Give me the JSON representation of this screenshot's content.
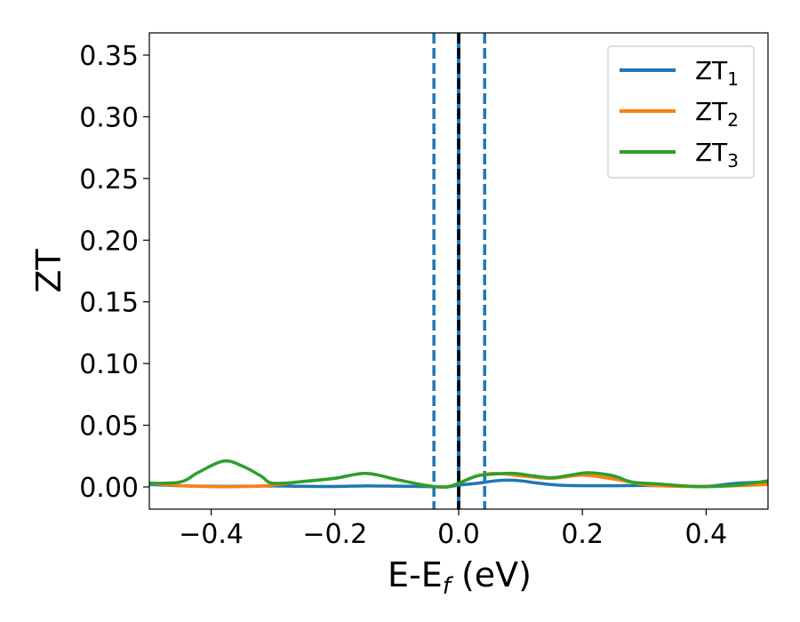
{
  "chart_data": {
    "type": "line",
    "title": "",
    "xlabel": {
      "main": "E-E",
      "sub": "f",
      "unit": " (eV)"
    },
    "ylabel": "ZT",
    "xlim": [
      -0.5,
      0.5
    ],
    "ylim": [
      -0.018,
      0.368
    ],
    "xticks": [
      -0.4,
      -0.2,
      0.0,
      0.2,
      0.4
    ],
    "xtick_labels": [
      "−0.4",
      "−0.2",
      "0.0",
      "0.2",
      "0.4"
    ],
    "yticks": [
      0.0,
      0.05,
      0.1,
      0.15,
      0.2,
      0.25,
      0.3,
      0.35
    ],
    "ytick_labels": [
      "0.00",
      "0.05",
      "0.10",
      "0.15",
      "0.20",
      "0.25",
      "0.30",
      "0.35"
    ],
    "grid": false,
    "legend_position": "top-right",
    "vlines": [
      {
        "x": -0.04,
        "style": "dashed",
        "color": "#1f77b4"
      },
      {
        "x": 0.0,
        "style": "solid",
        "color": "#1f77b4"
      },
      {
        "x": 0.0,
        "style": "dashed",
        "color": "#000000"
      },
      {
        "x": 0.042,
        "style": "dashed",
        "color": "#1f77b4"
      }
    ],
    "series": [
      {
        "name": "ZT",
        "sub": "1",
        "color": "#1f77b4",
        "x": [
          -0.5,
          -0.45,
          -0.4,
          -0.35,
          -0.3,
          -0.25,
          -0.2,
          -0.15,
          -0.1,
          -0.05,
          -0.02,
          0.0,
          0.03,
          0.06,
          0.08,
          0.1,
          0.13,
          0.16,
          0.2,
          0.25,
          0.3,
          0.35,
          0.4,
          0.45,
          0.5
        ],
        "y": [
          0.002,
          0.001,
          0.0005,
          0.0005,
          0.0008,
          0.0005,
          0.0004,
          0.0008,
          0.0006,
          0.0003,
          0.0,
          0.0015,
          0.003,
          0.005,
          0.0055,
          0.005,
          0.003,
          0.0015,
          0.001,
          0.001,
          0.0012,
          0.0008,
          0.0005,
          0.003,
          0.004
        ]
      },
      {
        "name": "ZT",
        "sub": "2",
        "color": "#ff7f0e",
        "x": [
          -0.5,
          -0.45,
          -0.4,
          -0.37,
          -0.33,
          -0.3,
          -0.25,
          -0.2,
          -0.15,
          -0.1,
          -0.05,
          -0.02,
          0.0,
          0.03,
          0.06,
          0.1,
          0.15,
          0.2,
          0.25,
          0.3,
          0.35,
          0.4,
          0.45,
          0.5
        ],
        "y": [
          0.003,
          0.001,
          0.0003,
          0.0002,
          0.0005,
          0.0015,
          0.0045,
          0.007,
          0.011,
          0.006,
          0.001,
          0.0,
          0.003,
          0.009,
          0.011,
          0.009,
          0.007,
          0.0095,
          0.0065,
          0.002,
          0.0005,
          0.0005,
          0.001,
          0.002
        ]
      },
      {
        "name": "ZT",
        "sub": "3",
        "color": "#2ca02c",
        "x": [
          -0.5,
          -0.45,
          -0.42,
          -0.38,
          -0.35,
          -0.32,
          -0.3,
          -0.25,
          -0.2,
          -0.15,
          -0.1,
          -0.05,
          -0.02,
          0.0,
          0.03,
          0.06,
          0.09,
          0.12,
          0.15,
          0.18,
          0.21,
          0.25,
          0.28,
          0.32,
          0.36,
          0.4,
          0.45,
          0.5
        ],
        "y": [
          0.003,
          0.004,
          0.012,
          0.021,
          0.017,
          0.009,
          0.003,
          0.0045,
          0.007,
          0.011,
          0.006,
          0.001,
          0.0,
          0.003,
          0.009,
          0.0105,
          0.011,
          0.009,
          0.0075,
          0.0095,
          0.0115,
          0.009,
          0.004,
          0.0025,
          0.001,
          0.0002,
          0.0015,
          0.005
        ]
      }
    ]
  }
}
